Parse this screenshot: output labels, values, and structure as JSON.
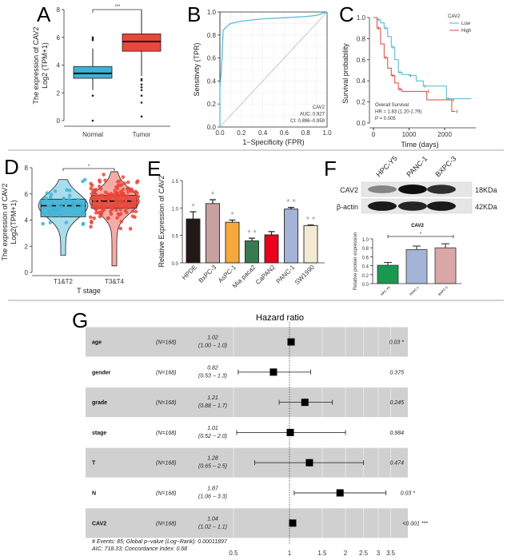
{
  "chart_data": [
    {
      "panel": "A",
      "type": "box",
      "ylabel_line1": "The expression of CAV2",
      "ylabel_line2": "Log2 (TPM+1)",
      "ylim": [
        0,
        8
      ],
      "yticks": [
        "0",
        "2",
        "4",
        "6",
        "8"
      ],
      "significance": "***",
      "groups": [
        {
          "name": "Normal",
          "color": "#3fb3d6",
          "q1": 3.05,
          "median": 3.4,
          "q3": 3.9,
          "min": 2.2,
          "max": 5.2,
          "outliers": [
            6.0,
            5.9,
            5.8,
            1.8,
            0
          ]
        },
        {
          "name": "Tumor",
          "color": "#e8473a",
          "q1": 5.0,
          "median": 5.7,
          "q3": 6.25,
          "min": 3.2,
          "max": 8.0,
          "outliers": [
            3.0,
            2.9,
            2.6,
            2.4,
            2.2,
            1.8,
            1.3,
            0.3
          ]
        }
      ]
    },
    {
      "panel": "B",
      "type": "line",
      "xlabel": "1−Specificity (FPR)",
      "ylabel": "Sensitivity (TPR)",
      "xlim": [
        0,
        1
      ],
      "ylim": [
        0,
        1
      ],
      "xticks": [
        "0.0",
        "0.2",
        "0.4",
        "0.6",
        "0.8",
        "1.0"
      ],
      "yticks": [
        "0.0",
        "0.2",
        "0.4",
        "0.6",
        "0.8",
        "1.0"
      ],
      "color": "#5bbcd6",
      "x": [
        0,
        0,
        0.01,
        0.02,
        0.03,
        0.06,
        0.1,
        0.2,
        0.4,
        0.6,
        0.8,
        0.9,
        1.0
      ],
      "y": [
        0,
        0.35,
        0.45,
        0.6,
        0.84,
        0.87,
        0.9,
        0.92,
        0.94,
        0.95,
        0.96,
        0.97,
        1.0
      ],
      "annotation": [
        "CAV2",
        "AUC: 0.927",
        "CI: 0.896−0.959"
      ]
    },
    {
      "panel": "C",
      "type": "line",
      "xlabel": "Time (days)",
      "ylabel": "Survival probability",
      "xlim": [
        0,
        2800
      ],
      "ylim": [
        0,
        1
      ],
      "xticks": [
        "0",
        "1000",
        "2000"
      ],
      "yticks": [
        "0.0",
        "0.2",
        "0.4",
        "0.6",
        "0.8",
        "1.0"
      ],
      "legend_title": "CAV2",
      "legend_position": "top-right",
      "series": [
        {
          "name": "Low",
          "color": "#4fb3cf",
          "x": [
            0,
            100,
            200,
            300,
            400,
            500,
            600,
            700,
            800,
            1000,
            1200,
            1400,
            2050,
            2050,
            2750
          ],
          "y": [
            1,
            0.98,
            0.95,
            0.9,
            0.82,
            0.72,
            0.6,
            0.48,
            0.46,
            0.45,
            0.4,
            0.35,
            0.35,
            0.23,
            0.23
          ]
        },
        {
          "name": "High",
          "color": "#d9473d",
          "x": [
            0,
            100,
            200,
            300,
            400,
            500,
            600,
            700,
            800,
            1500,
            1500,
            2200,
            2200,
            2300
          ],
          "y": [
            1,
            0.9,
            0.75,
            0.62,
            0.52,
            0.45,
            0.38,
            0.32,
            0.3,
            0.3,
            0.22,
            0.22,
            0.11,
            0.11
          ]
        }
      ],
      "annotation": [
        "Overall Survival",
        "HR = 1.83 (1.20-2.79)",
        "P = 0.005"
      ]
    },
    {
      "panel": "D",
      "type": "violin",
      "ylabel_line1": "The expression of CAV2",
      "ylabel_line2": "Log2(TPM+1)",
      "xlabel": "T stage",
      "ylim": [
        0,
        8
      ],
      "yticks": [
        "0",
        "2",
        "4",
        "6",
        "8"
      ],
      "significance": "*",
      "groups": [
        {
          "name": "T1&T2",
          "color": "#3fb3d6",
          "q1": 4.25,
          "median": 5.1,
          "q3": 5.6,
          "min": 1.3,
          "max": 7.1,
          "n_points": 40
        },
        {
          "name": "T3&T4",
          "color": "#e8473a",
          "q1": 4.9,
          "median": 5.45,
          "q3": 5.9,
          "min": 0.5,
          "max": 7.7,
          "n_points": 130
        }
      ]
    },
    {
      "panel": "E",
      "type": "bar",
      "ylabel": "Relative Expression of CAV2",
      "ylim": [
        0,
        1.5
      ],
      "yticks": [
        "0.0",
        "0.5",
        "1.0",
        "1.5"
      ],
      "categories": [
        "HPDE",
        "BxPC-3",
        "AsPC-1",
        "Mia paca2",
        "CaPAN2",
        "PANC-1",
        "SW1990"
      ],
      "values": [
        0.8,
        1.08,
        0.74,
        0.4,
        0.51,
        0.98,
        0.68
      ],
      "errors": [
        0.13,
        0.07,
        0.04,
        0.05,
        0.06,
        0.03,
        0.01
      ],
      "colors": [
        "#231815",
        "#c9a0a0",
        "#f5a93b",
        "#3a7a50",
        "#e8001c",
        "#a5b4d6",
        "#f3ead2"
      ],
      "significance": [
        "*",
        "*",
        "*",
        "* *",
        "",
        "* *",
        "* *"
      ]
    },
    {
      "panel": "F",
      "type": "bar",
      "title": "CAV2",
      "ylabel": "Relative protein expression",
      "ylim": [
        0,
        1.0
      ],
      "yticks": [
        "0.0",
        "0.2",
        "0.4",
        "0.6",
        "0.8",
        "1.0"
      ],
      "categories": [
        "HPC-Y5",
        "PANC-1",
        "BXPC-3"
      ],
      "values": [
        0.41,
        0.76,
        0.8
      ],
      "errors": [
        0.06,
        0.08,
        0.09
      ],
      "colors": [
        "#1a9850",
        "#a5b4d6",
        "#d9a7a7"
      ],
      "significance": "*"
    },
    {
      "panel": "G",
      "type": "forest",
      "title": "Hazard ratio",
      "xscale": "log",
      "xticks": [
        "0.5",
        "1",
        "1.5",
        "2",
        "2.5",
        "3",
        "3.5"
      ],
      "rows": [
        {
          "name": "age",
          "n": "(N=168)",
          "hr": 1.02,
          "lo": 1.0,
          "hi": 1.04,
          "hr_text": "1.02",
          "ci_text": "(1.00 − 1.0)",
          "p": "0.03 *"
        },
        {
          "name": "gender",
          "n": "(N=168)",
          "hr": 0.82,
          "lo": 0.53,
          "hi": 1.3,
          "hr_text": "0.82",
          "ci_text": "(0.53 − 1.3)",
          "p": "0.375"
        },
        {
          "name": "grade",
          "n": "(N=168)",
          "hr": 1.21,
          "lo": 0.88,
          "hi": 1.7,
          "hr_text": "1.21",
          "ci_text": "(0.88 − 1.7)",
          "p": "0.245"
        },
        {
          "name": "stage",
          "n": "(N=168)",
          "hr": 1.01,
          "lo": 0.52,
          "hi": 2.0,
          "hr_text": "1.01",
          "ci_text": "(0.52 − 2.0)",
          "p": "0.984"
        },
        {
          "name": "T",
          "n": "(N=168)",
          "hr": 1.28,
          "lo": 0.65,
          "hi": 2.5,
          "hr_text": "1.28",
          "ci_text": "(0.65 − 2.5)",
          "p": "0.474"
        },
        {
          "name": "N",
          "n": "(N=168)",
          "hr": 1.87,
          "lo": 1.06,
          "hi": 3.3,
          "hr_text": "1.87",
          "ci_text": "(1.06 − 3.3)",
          "p": "0.03 *"
        },
        {
          "name": "CAV2",
          "n": "(N=168)",
          "hr": 1.04,
          "lo": 1.02,
          "hi": 1.06,
          "hr_text": "1.04",
          "ci_text": "(1.02 − 1.1)",
          "p": "<0.001 ***"
        }
      ],
      "footer": [
        "# Events: 85; Global p−value (Log−Rank): 0.00011897",
        "AIC: 718.33; Concordance Index: 0.68"
      ]
    }
  ],
  "panels": {
    "A": "A",
    "B": "B",
    "C": "C",
    "D": "D",
    "E": "E",
    "F": "F",
    "G": "G"
  },
  "western_blot": {
    "lanes": [
      "HPC-Y5",
      "PANC-1",
      "BXPC-3"
    ],
    "rows": [
      {
        "protein": "CAV2",
        "size": "18KDa",
        "band_intensity": [
          0.45,
          1.0,
          0.85
        ]
      },
      {
        "protein": "β-actin",
        "size": "42KDa",
        "band_intensity": [
          0.95,
          0.9,
          0.95
        ]
      }
    ]
  }
}
